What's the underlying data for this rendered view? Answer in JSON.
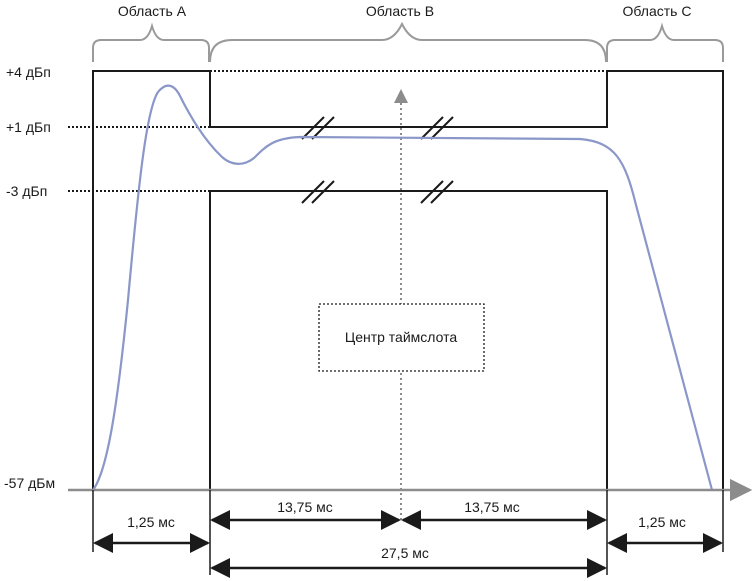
{
  "regions": {
    "a": "Область A",
    "b": "Область B",
    "c": "Область C"
  },
  "levels": {
    "plus4": "+4 дБп",
    "plus1": "+1 дБп",
    "minus3": "-3 дБп",
    "minus57": "-57 дБм"
  },
  "center_label": "Центр таймслота",
  "dimensions": {
    "left_ramp": "1,25 мс",
    "half_left": "13,75 мс",
    "half_right": "13,75 мс",
    "right_ramp": "1,25 мс",
    "total": "27,5 мс"
  },
  "colors": {
    "line": "#1a1a1a",
    "brace": "#9a9a9a",
    "axis": "#8c8c8c",
    "curve": "#8a97c8"
  }
}
